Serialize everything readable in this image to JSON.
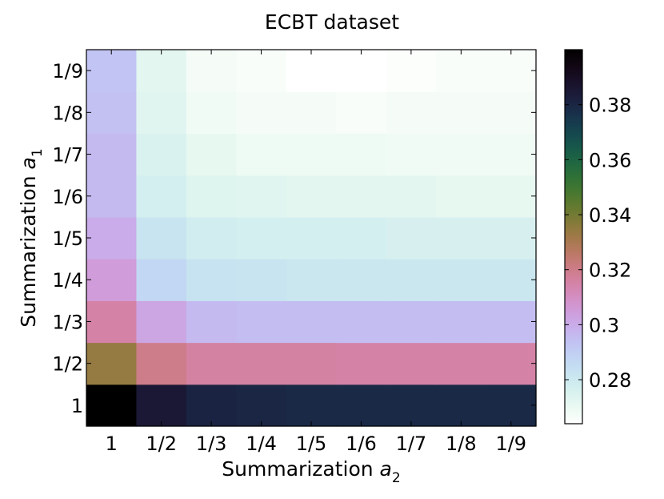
{
  "chart_data": {
    "type": "heatmap",
    "title": "ECBT dataset",
    "xlabel_text": "Summarization ",
    "xlabel_var": "a",
    "xlabel_sub": "2",
    "ylabel_text": "Summarization ",
    "ylabel_var": "a",
    "ylabel_sub": "1",
    "x_categories": [
      "1",
      "1/2",
      "1/3",
      "1/4",
      "1/5",
      "1/6",
      "1/7",
      "1/8",
      "1/9"
    ],
    "y_categories": [
      "1",
      "1/2",
      "1/3",
      "1/4",
      "1/5",
      "1/6",
      "1/7",
      "1/8",
      "1/9"
    ],
    "values": [
      [
        0.4,
        0.385,
        0.381,
        0.38,
        0.379,
        0.379,
        0.379,
        0.379,
        0.379
      ],
      [
        0.334,
        0.32,
        0.316,
        0.316,
        0.316,
        0.315,
        0.315,
        0.315,
        0.315
      ],
      [
        0.315,
        0.302,
        0.296,
        0.295,
        0.295,
        0.295,
        0.295,
        0.295,
        0.295
      ],
      [
        0.305,
        0.287,
        0.283,
        0.282,
        0.281,
        0.281,
        0.281,
        0.281,
        0.281
      ],
      [
        0.3,
        0.282,
        0.278,
        0.277,
        0.277,
        0.277,
        0.276,
        0.276,
        0.276
      ],
      [
        0.296,
        0.277,
        0.274,
        0.273,
        0.272,
        0.272,
        0.272,
        0.271,
        0.271
      ],
      [
        0.296,
        0.275,
        0.271,
        0.269,
        0.269,
        0.269,
        0.268,
        0.268,
        0.268
      ],
      [
        0.294,
        0.273,
        0.268,
        0.267,
        0.267,
        0.266,
        0.267,
        0.267,
        0.267
      ],
      [
        0.293,
        0.272,
        0.267,
        0.266,
        0.264,
        0.264,
        0.265,
        0.266,
        0.266
      ]
    ],
    "colorbar": {
      "vmin": 0.264,
      "vmax": 0.4,
      "ticks": [
        "0.28",
        "0.3",
        "0.32",
        "0.34",
        "0.36",
        "0.38"
      ],
      "colormap": "cubehelix_r"
    }
  }
}
